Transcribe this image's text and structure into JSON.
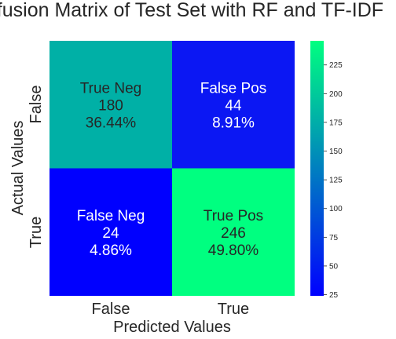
{
  "chart_data": {
    "type": "heatmap",
    "title": "Confusion Matrix of Test Set with RF and TF-IDF",
    "xlabel": "Predicted Values",
    "ylabel": "Actual Values",
    "x_categories": [
      "False",
      "True"
    ],
    "y_categories": [
      "False",
      "True"
    ],
    "cells": [
      [
        {
          "label": "True Neg",
          "value": 180,
          "percent": "36.44%",
          "color": "#00b0a6"
        },
        {
          "label": "False Pos",
          "value": 44,
          "percent": "8.91%",
          "color": "#0b17f3"
        }
      ],
      [
        {
          "label": "False Neg",
          "value": 24,
          "percent": "4.86%",
          "color": "#0000ff"
        },
        {
          "label": "True Pos",
          "value": 246,
          "percent": "49.80%",
          "color": "#00ff80"
        }
      ]
    ],
    "colormap": "winter",
    "colorbar": {
      "min": 24,
      "max": 246,
      "ticks": [
        25,
        50,
        75,
        100,
        125,
        150,
        175,
        200,
        225
      ],
      "low_color": "#0000ff",
      "high_color": "#00ff80"
    },
    "cell_text_light_color": "#ffffff",
    "cell_text_dark_color": "#262626"
  }
}
